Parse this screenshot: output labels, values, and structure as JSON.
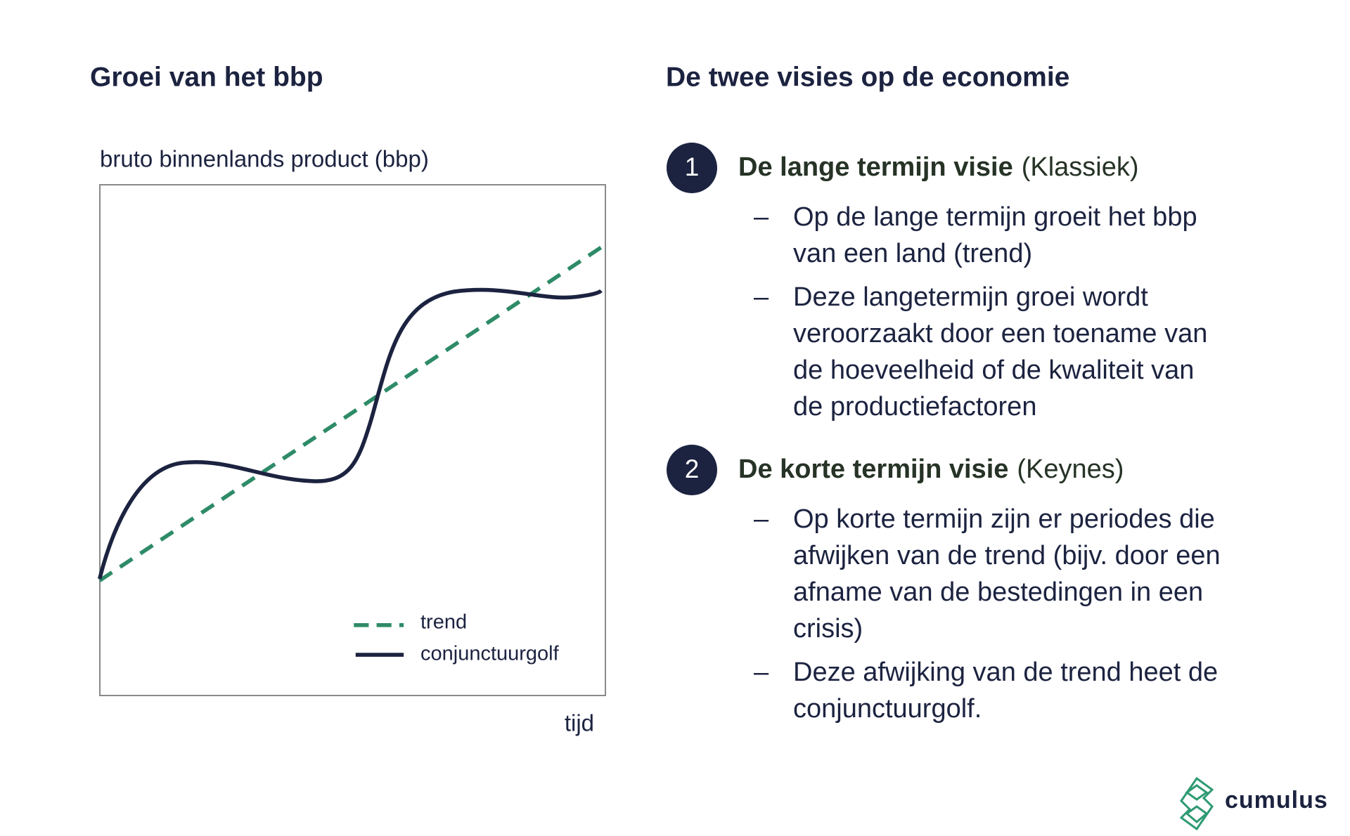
{
  "left": {
    "title": "Groei van het bbp",
    "y_label": "bruto binnenlands product (bbp)",
    "x_label": "tijd",
    "legend": [
      "trend",
      "conjunctuurgolf"
    ]
  },
  "right": {
    "title": "De twee visies op de economie",
    "sections": [
      {
        "number": "1",
        "heading": "De lange termijn visie",
        "note": "(Klassiek)",
        "bullets": [
          [
            "Op de lange termijn groeit het bbp",
            "van een land (trend)"
          ],
          [
            "Deze langetermijn groei wordt",
            "veroorzaakt door een toename van",
            "de hoeveelheid of de kwaliteit van",
            "de productiefactoren"
          ]
        ]
      },
      {
        "number": "2",
        "heading": "De korte termijn visie",
        "note": "(Keynes)",
        "bullets": [
          [
            "Op korte termijn zijn er periodes die",
            "afwijken van de trend (bijv. door een",
            "afname van de bestedingen in een",
            "crisis)"
          ],
          [
            "Deze afwijking van de trend heet de",
            "conjunctuurgolf."
          ]
        ]
      }
    ]
  },
  "logo": "cumulus"
}
